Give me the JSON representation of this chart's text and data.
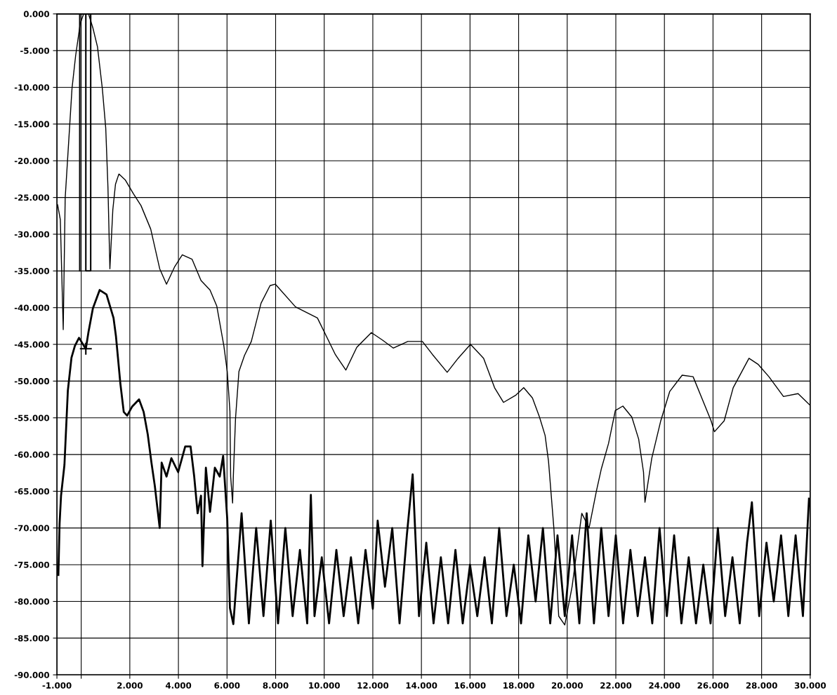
{
  "chart_data": {
    "type": "line",
    "grid": true,
    "marker": "none",
    "line_style": "solid",
    "xlim": [
      -1,
      30
    ],
    "ylim": [
      -90,
      0
    ],
    "xticks": [
      {
        "value": -1,
        "label": "-1.000"
      },
      {
        "value": 0,
        "label": null
      },
      {
        "value": 2,
        "label": "2.000"
      },
      {
        "value": 4,
        "label": "4.000"
      },
      {
        "value": 6,
        "label": "6.000"
      },
      {
        "value": 8,
        "label": "8.000"
      },
      {
        "value": 10,
        "label": "10.000"
      },
      {
        "value": 12,
        "label": "12.000"
      },
      {
        "value": 14,
        "label": "14.000"
      },
      {
        "value": 16,
        "label": "16.000"
      },
      {
        "value": 18,
        "label": "18.000"
      },
      {
        "value": 20,
        "label": "20.000"
      },
      {
        "value": 22,
        "label": "22.000"
      },
      {
        "value": 24,
        "label": "24.000"
      },
      {
        "value": 26,
        "label": "26.000"
      },
      {
        "value": 28,
        "label": "28.000"
      },
      {
        "value": 30,
        "label": "30.000"
      }
    ],
    "yticks": [
      {
        "value": 0,
        "label": "0.000"
      },
      {
        "value": -5,
        "label": "-5.000"
      },
      {
        "value": -10,
        "label": "-10.000"
      },
      {
        "value": -15,
        "label": "-15.000"
      },
      {
        "value": -20,
        "label": "-20.000"
      },
      {
        "value": -25,
        "label": "-25.000"
      },
      {
        "value": -30,
        "label": "-30.000"
      },
      {
        "value": -35,
        "label": "-35.000"
      },
      {
        "value": -40,
        "label": "-40.000"
      },
      {
        "value": -45,
        "label": "-45.000"
      },
      {
        "value": -50,
        "label": "-50.000"
      },
      {
        "value": -55,
        "label": "-55.000"
      },
      {
        "value": -60,
        "label": "-60.000"
      },
      {
        "value": -65,
        "label": "-65.000"
      },
      {
        "value": -70,
        "label": "-70.000"
      },
      {
        "value": -75,
        "label": "-75.000"
      },
      {
        "value": -80,
        "label": "-80.000"
      },
      {
        "value": -85,
        "label": "-85.000"
      },
      {
        "value": -90,
        "label": "-90.000"
      }
    ],
    "series": [
      {
        "color": "#000000",
        "x": [
          -0.97,
          -0.86,
          -0.74,
          -0.66,
          -0.38,
          -0.23,
          -0.04,
          0.1,
          0.3,
          0.48,
          0.67,
          0.87,
          1.01,
          1.1,
          1.18,
          1.3,
          1.41,
          1.55,
          1.81,
          2.15,
          2.46,
          2.86,
          3.23,
          3.51,
          3.85,
          4.16,
          4.56,
          4.93,
          5.3,
          5.58,
          5.87,
          6.01,
          6.12,
          6.15,
          6.23,
          6.26,
          6.35,
          6.49,
          6.72,
          7.0,
          7.4,
          7.77,
          7.99,
          8.82,
          9.72,
          10.09,
          10.46,
          10.89,
          11.34,
          11.94,
          12.39,
          12.84,
          13.44,
          14.04,
          14.46,
          15.06,
          15.51,
          16.02,
          16.56,
          17.01,
          17.38,
          17.89,
          18.21,
          18.57,
          18.86,
          19.09,
          19.23,
          19.45,
          19.65,
          19.9,
          20.2,
          20.6,
          20.9,
          21.2,
          21.4,
          21.7,
          21.98,
          22.29,
          22.66,
          22.94,
          23.14,
          23.2,
          23.48,
          23.85,
          24.22,
          24.73,
          25.18,
          25.55,
          25.92,
          26.06,
          26.46,
          26.83,
          27.48,
          27.85,
          28.3,
          28.9,
          29.5,
          30.0
        ],
        "values": [
          -26,
          -28,
          -43,
          -25.1,
          -10.2,
          -5.7,
          -1.3,
          0,
          0,
          -1.9,
          -4.5,
          -10.2,
          -15.6,
          -23.6,
          -34.7,
          -26.7,
          -23.2,
          -21.8,
          -22.6,
          -24.5,
          -26.1,
          -29.3,
          -34.7,
          -36.8,
          -34.4,
          -32.8,
          -33.4,
          -36.3,
          -37.6,
          -39.8,
          -45.2,
          -48.7,
          -54.1,
          -63,
          -66.6,
          -63,
          -55.1,
          -48.7,
          -46.5,
          -44.6,
          -39.4,
          -37,
          -36.8,
          -39.9,
          -41.4,
          -43.9,
          -46.4,
          -48.5,
          -45.4,
          -43.4,
          -44.4,
          -45.5,
          -44.6,
          -44.6,
          -46.4,
          -48.8,
          -46.9,
          -45,
          -46.9,
          -50.9,
          -52.9,
          -51.9,
          -50.9,
          -52.3,
          -54.9,
          -57.4,
          -60.9,
          -70,
          -82,
          -83.2,
          -78,
          -68,
          -70,
          -65,
          -62,
          -58.5,
          -54,
          -53.4,
          -54.9,
          -57.9,
          -62.4,
          -66.5,
          -60.5,
          -55.4,
          -51.4,
          -49.2,
          -49.4,
          -52.4,
          -55.4,
          -56.9,
          -55.4,
          -50.9,
          -46.9,
          -47.7,
          -49.4,
          -52.1,
          -51.7,
          -53.3
        ]
      },
      {
        "color": "#000000",
        "x": [
          -0.94,
          -0.89,
          -0.83,
          -0.69,
          -0.55,
          -0.4,
          -0.26,
          -0.09,
          0.11,
          0.19,
          0.3,
          0.48,
          0.76,
          1.04,
          1.33,
          1.43,
          1.61,
          1.75,
          1.89,
          2.09,
          2.38,
          2.57,
          2.74,
          2.89,
          3.03,
          3.23,
          3.31,
          3.51,
          3.71,
          3.99,
          4.28,
          4.5,
          4.65,
          4.79,
          4.93,
          4.99,
          5.13,
          5.3,
          5.5,
          5.7,
          5.84,
          6.01,
          6.12,
          6.26,
          6.6,
          6.9,
          7.2,
          7.5,
          7.8,
          8.1,
          8.4,
          8.7,
          9.0,
          9.3,
          9.45,
          9.6,
          9.9,
          10.2,
          10.5,
          10.8,
          11.1,
          11.4,
          11.7,
          12.0,
          12.2,
          12.5,
          12.8,
          13.1,
          13.4,
          13.64,
          13.9,
          14.2,
          14.5,
          14.8,
          15.1,
          15.4,
          15.7,
          16.0,
          16.3,
          16.6,
          16.9,
          17.2,
          17.5,
          17.8,
          18.1,
          18.4,
          18.7,
          19.0,
          19.3,
          19.6,
          19.9,
          20.2,
          20.5,
          20.8,
          21.1,
          21.4,
          21.7,
          22.0,
          22.3,
          22.6,
          22.9,
          23.2,
          23.5,
          23.8,
          24.1,
          24.4,
          24.7,
          25.0,
          25.3,
          25.6,
          25.9,
          26.2,
          26.5,
          26.8,
          27.1,
          27.4,
          27.6,
          27.9,
          28.2,
          28.5,
          28.8,
          29.1,
          29.4,
          29.7,
          29.95
        ],
        "values": [
          -76.4,
          -69.4,
          -65.6,
          -61.4,
          -51.3,
          -46.8,
          -45.2,
          -44.1,
          -45.2,
          -45.6,
          -43.3,
          -40.1,
          -37.6,
          -38.2,
          -41.4,
          -43.9,
          -50.3,
          -54.2,
          -54.7,
          -53.5,
          -52.5,
          -54.2,
          -57.3,
          -61.1,
          -64.3,
          -70,
          -61.1,
          -63,
          -60.5,
          -62.4,
          -58.9,
          -58.9,
          -63,
          -68,
          -65.6,
          -75.2,
          -61.8,
          -67.8,
          -61.8,
          -63,
          -60.2,
          -68.8,
          -80.9,
          -83.1,
          -68,
          -83,
          -70,
          -82,
          -69,
          -83,
          -70,
          -82,
          -73,
          -83,
          -65.5,
          -82,
          -74,
          -83,
          -73,
          -82,
          -74,
          -83,
          -73,
          -81,
          -69,
          -78,
          -70,
          -83,
          -71,
          -62.7,
          -82,
          -72,
          -83,
          -74,
          -83,
          -73,
          -83,
          -75,
          -82,
          -74,
          -83,
          -70,
          -82,
          -75,
          -83,
          -71,
          -80,
          -70,
          -83,
          -71,
          -82,
          -71,
          -83,
          -68,
          -83,
          -70,
          -82,
          -71,
          -83,
          -73,
          -82,
          -74,
          -83,
          -70,
          -82,
          -71,
          -83,
          -74,
          -83,
          -75,
          -83,
          -70,
          -82,
          -74,
          -83,
          -72,
          -66.5,
          -82,
          -72,
          -80,
          -71,
          -82,
          -71,
          -82,
          -66
        ]
      },
      {
        "color": "#000000",
        "x": [
          -0.06,
          -0.06,
          0.39,
          0.39,
          0.19,
          0.19
        ],
        "values": [
          -35,
          0,
          0,
          -35,
          -35,
          0
        ]
      },
      {
        "type": "scatter",
        "color": "#000000",
        "marker": "cross",
        "x": [
          0.19
        ],
        "values": [
          -45.6
        ]
      }
    ]
  }
}
